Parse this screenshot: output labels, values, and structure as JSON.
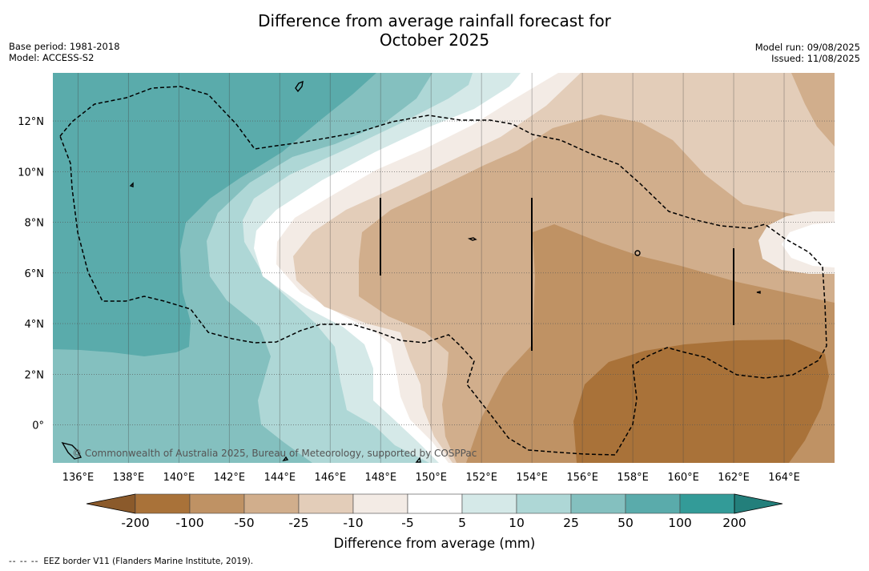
{
  "title": {
    "line1": "Difference from average rainfall forecast for",
    "line2": "October 2025"
  },
  "meta_left": {
    "base_period": "Base period: 1981-2018",
    "model": "Model: ACCESS-S2"
  },
  "meta_right": {
    "model_run": "Model run: 09/08/2025",
    "issued": "Issued: 11/08/2025"
  },
  "map": {
    "lon_range": [
      135,
      166
    ],
    "lat_range": [
      -1.5,
      13.9
    ],
    "lon_ticks": [
      136,
      138,
      140,
      142,
      144,
      146,
      148,
      150,
      152,
      154,
      156,
      158,
      160,
      162,
      164
    ],
    "lon_tick_labels": [
      "136°E",
      "138°E",
      "140°E",
      "142°E",
      "144°E",
      "146°E",
      "148°E",
      "150°E",
      "152°E",
      "154°E",
      "156°E",
      "158°E",
      "160°E",
      "162°E",
      "164°E"
    ],
    "lat_ticks": [
      0,
      2,
      4,
      6,
      8,
      10,
      12
    ],
    "lat_tick_labels": [
      "0°",
      "2°N",
      "4°N",
      "6°N",
      "8°N",
      "10°N",
      "12°N"
    ],
    "copyright": "© Commonwealth of Australia 2025, Bureau of Meteorology, supported by COSPPac",
    "colors": {
      "cat_-200": "#a97239",
      "cat_-100": "#bf9264",
      "cat_-50": "#d1ae8c",
      "cat_-25": "#e3cdb9",
      "cat_-10": "#f3ebe5",
      "cat_-5": "#ffffff",
      "cat_5": "#d5e9e8",
      "cat_10": "#aed7d6",
      "cat_25": "#84c0bf",
      "cat_50": "#5aabab",
      "cat_100": "#339b98",
      "cat_200": "#237f7b"
    }
  },
  "colorbar": {
    "labels": [
      "-200",
      "-100",
      "-50",
      "-25",
      "-10",
      "-5",
      "5",
      "10",
      "25",
      "50",
      "100",
      "200"
    ],
    "colors": [
      "#a97239",
      "#bf9264",
      "#d1ae8c",
      "#e3cdb9",
      "#f3ebe5",
      "#ffffff",
      "#d5e9e8",
      "#aed7d6",
      "#84c0bf",
      "#5aabab",
      "#339b98"
    ],
    "low_extend_color": "#8b5a2b",
    "high_extend_color": "#237f7b",
    "title": "Difference from average (mm)"
  },
  "footnote": {
    "dashes": "-- -- --",
    "text": "EEZ border V11 (Flanders Marine Institute, 2019)."
  }
}
